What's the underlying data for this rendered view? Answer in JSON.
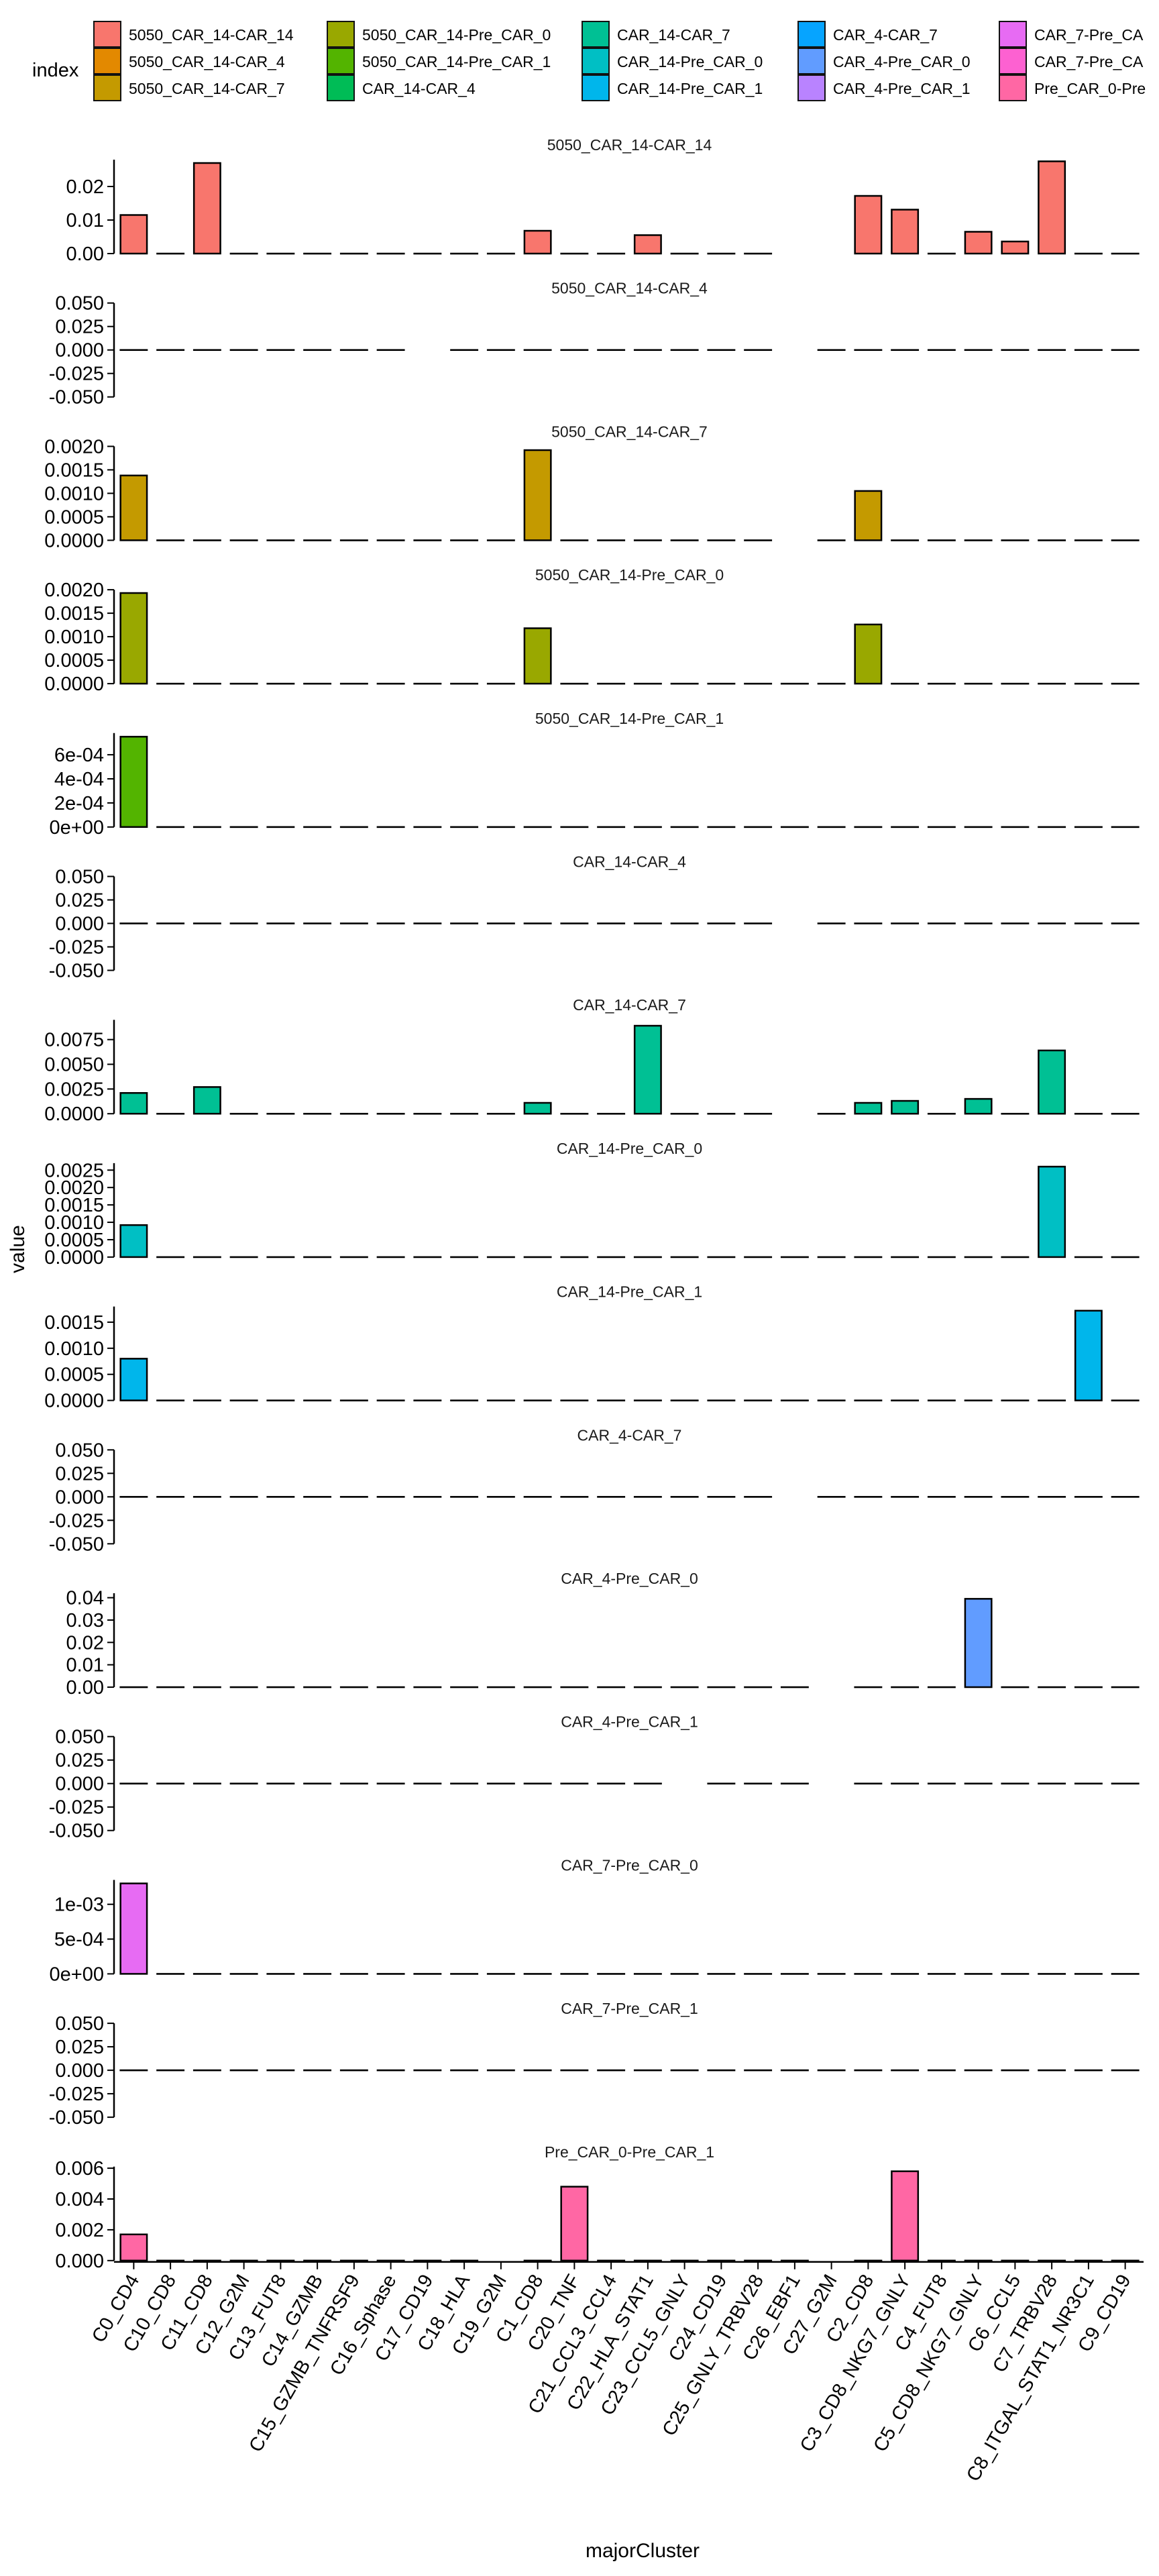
{
  "chart_data": {
    "type": "bar",
    "facet": "panels stacked vertically, shared x-axis",
    "grid": false,
    "legend": {
      "title": "index",
      "placement": "top",
      "entries": [
        {
          "name": "5050_CAR_14-CAR_14",
          "color": "#F8766D"
        },
        {
          "name": "5050_CAR_14-CAR_4",
          "color": "#E38900"
        },
        {
          "name": "5050_CAR_14-CAR_7",
          "color": "#C49A00"
        },
        {
          "name": "5050_CAR_14-Pre_CAR_0",
          "color": "#99A800"
        },
        {
          "name": "5050_CAR_14-Pre_CAR_1",
          "color": "#53B400"
        },
        {
          "name": "CAR_14-CAR_4",
          "color": "#00BC56"
        },
        {
          "name": "CAR_14-CAR_7",
          "color": "#00C094"
        },
        {
          "name": "CAR_14-Pre_CAR_0",
          "color": "#00BFC4"
        },
        {
          "name": "CAR_14-Pre_CAR_1",
          "color": "#00B6EB"
        },
        {
          "name": "CAR_4-CAR_7",
          "color": "#06A4FF"
        },
        {
          "name": "CAR_4-Pre_CAR_0",
          "color": "#619CFF"
        },
        {
          "name": "CAR_4-Pre_CAR_1",
          "color": "#B983FF"
        },
        {
          "name": "CAR_7-Pre_CA",
          "color": "#E76BF3"
        },
        {
          "name": "CAR_7-Pre_CA",
          "color": "#FD61D1"
        },
        {
          "name": "Pre_CAR_0-Pre",
          "color": "#FF67A4"
        }
      ]
    },
    "xlabel": "majorCluster",
    "ylabel": "value",
    "categories": [
      "C0_CD4",
      "C10_CD8",
      "C11_CD8",
      "C12_G2M",
      "C13_FUT8",
      "C14_GZMB",
      "C15_GZMB_TNFRSF9",
      "C16_Sphase",
      "C17_CD19",
      "C18_HLA",
      "C19_G2M",
      "C1_CD8",
      "C20_TNF",
      "C21_CCL3_CCL4",
      "C22_HLA_STAT1",
      "C23_CCL5_GNLY",
      "C24_CD19",
      "C25_GNLY_TRBV28",
      "C26_EBF1",
      "C27_G2M",
      "C2_CD8",
      "C3_CD8_NKG7_GNLY",
      "C4_FUT8",
      "C5_CD8_NKG7_GNLY",
      "C6_CCL5",
      "C7_TRBV28",
      "C8_ITGAL_STAT1_NR3C1",
      "C9_CD19"
    ],
    "panels": [
      {
        "title": "5050_CAR_14-CAR_14",
        "color": "#F8766D",
        "ylim": [
          0,
          0.028
        ],
        "ticks": [
          0,
          0.01,
          0.02
        ],
        "tick_labels": [
          "0.00",
          "0.01",
          "0.02"
        ],
        "values": [
          0.0115,
          0,
          0.027,
          0,
          0,
          0,
          0,
          0,
          0,
          0,
          0,
          0.0068,
          0,
          0,
          0.0055,
          0,
          0,
          0,
          null,
          null,
          0.0172,
          0.0131,
          0,
          0.0065,
          0.0036,
          0.0275,
          0,
          0
        ]
      },
      {
        "title": "5050_CAR_14-CAR_4",
        "color": "#E38900",
        "ylim": [
          -0.05,
          0.05
        ],
        "ticks": [
          -0.05,
          -0.025,
          0,
          0.025,
          0.05
        ],
        "tick_labels": [
          "-0.050",
          "-0.025",
          "0.000",
          "0.025",
          "0.050"
        ],
        "values": [
          0,
          0,
          0,
          0,
          0,
          0,
          0,
          0,
          null,
          0,
          0,
          0,
          0,
          0,
          0,
          0,
          0,
          0,
          null,
          0,
          0,
          0,
          0,
          0,
          0,
          0,
          0,
          0
        ]
      },
      {
        "title": "5050_CAR_14-CAR_7",
        "color": "#C49A00",
        "ylim": [
          0,
          0.002
        ],
        "ticks": [
          0,
          0.0005,
          0.001,
          0.0015,
          0.002
        ],
        "tick_labels": [
          "0.0000",
          "0.0005",
          "0.0010",
          "0.0015",
          "0.0020"
        ],
        "values": [
          0.00138,
          0,
          0,
          0,
          0,
          0,
          0,
          0,
          0,
          0,
          0,
          0.00192,
          0,
          0,
          0,
          0,
          0,
          0,
          null,
          0,
          0.00105,
          0,
          0,
          0,
          0,
          0,
          0,
          0
        ]
      },
      {
        "title": "5050_CAR_14-Pre_CAR_0",
        "color": "#99A800",
        "ylim": [
          0,
          0.002
        ],
        "ticks": [
          0,
          0.0005,
          0.001,
          0.0015,
          0.002
        ],
        "tick_labels": [
          "0.0000",
          "0.0005",
          "0.0010",
          "0.0015",
          "0.0020"
        ],
        "values": [
          0.00193,
          0,
          0,
          0,
          0,
          0,
          0,
          0,
          0,
          0,
          0,
          0.00118,
          0,
          0,
          0,
          0,
          0,
          0,
          0,
          0,
          0.00126,
          0,
          0,
          0,
          0,
          0,
          0,
          0
        ]
      },
      {
        "title": "5050_CAR_14-Pre_CAR_1",
        "color": "#53B400",
        "ylim": [
          0,
          0.00078
        ],
        "ticks": [
          0,
          0.0002,
          0.0004,
          0.0006
        ],
        "tick_labels": [
          "0e+00",
          "2e-04",
          "4e-04",
          "6e-04"
        ],
        "values": [
          0.00075,
          0,
          0,
          0,
          0,
          0,
          0,
          0,
          0,
          0,
          0,
          0,
          0,
          0,
          0,
          0,
          0,
          0,
          0,
          0,
          0,
          0,
          0,
          0,
          0,
          0,
          0,
          0
        ]
      },
      {
        "title": "CAR_14-CAR_4",
        "color": "#00BC56",
        "ylim": [
          -0.05,
          0.05
        ],
        "ticks": [
          -0.05,
          -0.025,
          0,
          0.025,
          0.05
        ],
        "tick_labels": [
          "-0.050",
          "-0.025",
          "0.000",
          "0.025",
          "0.050"
        ],
        "values": [
          0,
          0,
          0,
          0,
          0,
          0,
          0,
          0,
          0,
          0,
          0,
          0,
          0,
          0,
          0,
          0,
          0,
          0,
          null,
          0,
          0,
          0,
          0,
          0,
          0,
          0,
          0,
          0
        ]
      },
      {
        "title": "CAR_14-CAR_7",
        "color": "#00C094",
        "ylim": [
          0,
          0.0095
        ],
        "ticks": [
          0,
          0.0025,
          0.005,
          0.0075
        ],
        "tick_labels": [
          "0.0000",
          "0.0025",
          "0.0050",
          "0.0075"
        ],
        "values": [
          0.0021,
          0,
          0.0027,
          0,
          0,
          0,
          0,
          0,
          0,
          0,
          0,
          0.0011,
          0,
          0,
          0.0089,
          0,
          0,
          0,
          null,
          0,
          0.0011,
          0.0013,
          0,
          0.0015,
          0,
          0.0064,
          0,
          0
        ]
      },
      {
        "title": "CAR_14-Pre_CAR_0",
        "color": "#00BFC4",
        "ylim": [
          0,
          0.0027
        ],
        "ticks": [
          0,
          0.0005,
          0.001,
          0.0015,
          0.002,
          0.0025
        ],
        "tick_labels": [
          "0.0000",
          "0.0005",
          "0.0010",
          "0.0015",
          "0.0020",
          "0.0025"
        ],
        "values": [
          0.00092,
          0,
          0,
          0,
          0,
          0,
          0,
          0,
          0,
          0,
          0,
          0,
          0,
          0,
          0,
          0,
          0,
          0,
          0,
          0,
          0,
          0,
          0,
          0,
          0,
          0.0026,
          0,
          0
        ]
      },
      {
        "title": "CAR_14-Pre_CAR_1",
        "color": "#00B6EB",
        "ylim": [
          0,
          0.0018
        ],
        "ticks": [
          0,
          0.0005,
          0.001,
          0.0015
        ],
        "tick_labels": [
          "0.0000",
          "0.0005",
          "0.0010",
          "0.0015"
        ],
        "values": [
          0.0008,
          0,
          0,
          0,
          0,
          0,
          0,
          0,
          0,
          0,
          0,
          0,
          0,
          0,
          0,
          0,
          0,
          0,
          0,
          0,
          0,
          0,
          0,
          0,
          0,
          0,
          0.00172,
          0
        ]
      },
      {
        "title": "CAR_4-CAR_7",
        "color": "#06A4FF",
        "ylim": [
          -0.05,
          0.05
        ],
        "ticks": [
          -0.05,
          -0.025,
          0,
          0.025,
          0.05
        ],
        "tick_labels": [
          "-0.050",
          "-0.025",
          "0.000",
          "0.025",
          "0.050"
        ],
        "values": [
          0,
          0,
          0,
          0,
          0,
          0,
          0,
          0,
          0,
          0,
          0,
          0,
          0,
          0,
          0,
          0,
          0,
          0,
          null,
          0,
          0,
          0,
          0,
          0,
          0,
          0,
          0,
          0
        ]
      },
      {
        "title": "CAR_4-Pre_CAR_0",
        "color": "#619CFF",
        "ylim": [
          0,
          0.042
        ],
        "ticks": [
          0,
          0.01,
          0.02,
          0.03,
          0.04
        ],
        "tick_labels": [
          "0.00",
          "0.01",
          "0.02",
          "0.03",
          "0.04"
        ],
        "values": [
          0,
          0,
          0,
          0,
          0,
          0,
          0,
          0,
          0,
          0,
          0,
          0,
          0,
          0,
          0,
          0,
          0,
          0,
          0,
          null,
          0,
          0,
          0,
          0.0395,
          0,
          0,
          0,
          0
        ]
      },
      {
        "title": "CAR_4-Pre_CAR_1",
        "color": "#B983FF",
        "ylim": [
          -0.05,
          0.05
        ],
        "ticks": [
          -0.05,
          -0.025,
          0,
          0.025,
          0.05
        ],
        "tick_labels": [
          "-0.050",
          "-0.025",
          "0.000",
          "0.025",
          "0.050"
        ],
        "values": [
          0,
          0,
          0,
          0,
          0,
          0,
          0,
          0,
          0,
          0,
          0,
          0,
          0,
          0,
          0,
          null,
          0,
          0,
          0,
          null,
          0,
          0,
          0,
          0,
          0,
          0,
          0,
          0
        ]
      },
      {
        "title": "CAR_7-Pre_CAR_0",
        "color": "#E76BF3",
        "ylim": [
          0,
          0.00135
        ],
        "ticks": [
          0,
          0.0005,
          0.001
        ],
        "tick_labels": [
          "0e+00",
          "5e-04",
          "1e-03"
        ],
        "values": [
          0.0013,
          0,
          0,
          0,
          0,
          0,
          0,
          0,
          0,
          0,
          0,
          0,
          0,
          0,
          0,
          0,
          0,
          0,
          0,
          0,
          0,
          0,
          0,
          0,
          0,
          0,
          0,
          0
        ]
      },
      {
        "title": "CAR_7-Pre_CAR_1",
        "color": "#FD61D1",
        "ylim": [
          -0.05,
          0.05
        ],
        "ticks": [
          -0.05,
          -0.025,
          0,
          0.025,
          0.05
        ],
        "tick_labels": [
          "-0.050",
          "-0.025",
          "0.000",
          "0.025",
          "0.050"
        ],
        "values": [
          0,
          0,
          0,
          0,
          0,
          0,
          0,
          0,
          0,
          0,
          0,
          0,
          0,
          0,
          0,
          0,
          0,
          0,
          0,
          0,
          0,
          0,
          0,
          0,
          0,
          0,
          0,
          0
        ]
      },
      {
        "title": "Pre_CAR_0-Pre_CAR_1",
        "color": "#FF67A4",
        "ylim": [
          0,
          0.0061
        ],
        "ticks": [
          0,
          0.002,
          0.004,
          0.006
        ],
        "tick_labels": [
          "0.000",
          "0.002",
          "0.004",
          "0.006"
        ],
        "values": [
          0.0017,
          0,
          0,
          0,
          0,
          0,
          0,
          0,
          0,
          0,
          null,
          0,
          0.0048,
          0,
          0,
          0,
          0,
          0,
          0,
          null,
          0,
          0.0058,
          0,
          0,
          0,
          0,
          0,
          0
        ]
      }
    ]
  }
}
